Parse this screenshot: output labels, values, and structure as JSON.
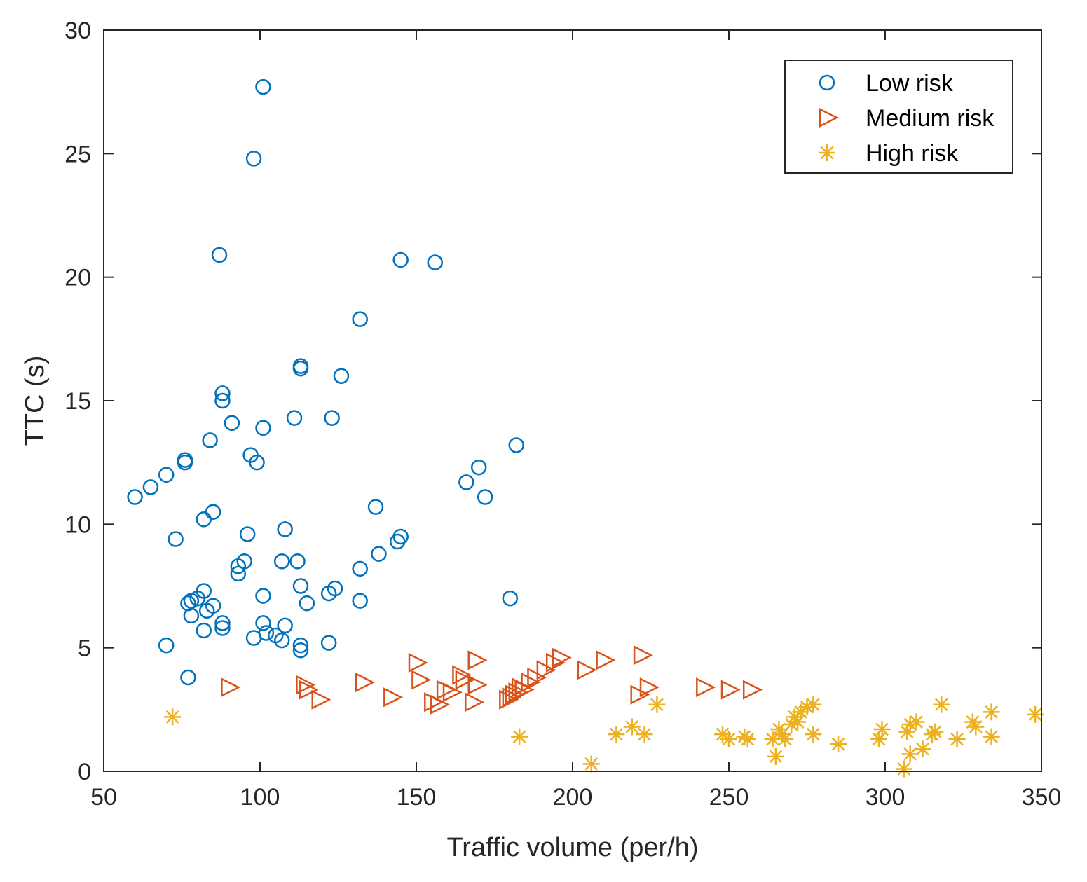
{
  "chart_data": {
    "type": "scatter",
    "title": "",
    "xlabel": "Traffic volume (per/h)",
    "ylabel": "TTC (s)",
    "xlim": [
      50,
      350
    ],
    "ylim": [
      0,
      30
    ],
    "xticks": [
      50,
      100,
      150,
      200,
      250,
      300,
      350
    ],
    "yticks": [
      0,
      5,
      10,
      15,
      20,
      25,
      30
    ],
    "xtick_labels": [
      "50",
      "100",
      "150",
      "200",
      "250",
      "300",
      "350"
    ],
    "ytick_labels": [
      "0",
      "5",
      "10",
      "15",
      "20",
      "25",
      "30"
    ],
    "grid": false,
    "legend_position": "top-right",
    "series": [
      {
        "name": "Low risk",
        "marker": "circle",
        "color": "#0072BD",
        "points": [
          [
            101,
            27.7
          ],
          [
            98,
            24.8
          ],
          [
            87,
            20.9
          ],
          [
            145,
            20.7
          ],
          [
            156,
            20.6
          ],
          [
            132,
            18.3
          ],
          [
            113,
            16.4
          ],
          [
            113,
            16.3
          ],
          [
            126,
            16.0
          ],
          [
            88,
            15.3
          ],
          [
            88,
            15.0
          ],
          [
            91,
            14.1
          ],
          [
            101,
            13.9
          ],
          [
            111,
            14.3
          ],
          [
            123,
            14.3
          ],
          [
            84,
            13.4
          ],
          [
            182,
            13.2
          ],
          [
            97,
            12.8
          ],
          [
            99,
            12.5
          ],
          [
            76,
            12.6
          ],
          [
            76,
            12.5
          ],
          [
            70,
            12.0
          ],
          [
            65,
            11.5
          ],
          [
            60,
            11.1
          ],
          [
            170,
            12.3
          ],
          [
            166,
            11.7
          ],
          [
            172,
            11.1
          ],
          [
            137,
            10.7
          ],
          [
            85,
            10.5
          ],
          [
            82,
            10.2
          ],
          [
            108,
            9.8
          ],
          [
            96,
            9.6
          ],
          [
            73,
            9.4
          ],
          [
            145,
            9.5
          ],
          [
            144,
            9.3
          ],
          [
            138,
            8.8
          ],
          [
            95,
            8.5
          ],
          [
            93,
            8.3
          ],
          [
            107,
            8.5
          ],
          [
            112,
            8.5
          ],
          [
            132,
            8.2
          ],
          [
            93,
            8.0
          ],
          [
            113,
            7.5
          ],
          [
            124,
            7.4
          ],
          [
            122,
            7.2
          ],
          [
            101,
            7.1
          ],
          [
            82,
            7.3
          ],
          [
            80,
            7.0
          ],
          [
            78,
            6.9
          ],
          [
            77,
            6.8
          ],
          [
            85,
            6.7
          ],
          [
            115,
            6.8
          ],
          [
            132,
            6.9
          ],
          [
            180,
            7.0
          ],
          [
            83,
            6.5
          ],
          [
            78,
            6.3
          ],
          [
            88,
            6.0
          ],
          [
            88,
            5.8
          ],
          [
            82,
            5.7
          ],
          [
            101,
            6.0
          ],
          [
            108,
            5.9
          ],
          [
            102,
            5.6
          ],
          [
            105,
            5.5
          ],
          [
            107,
            5.3
          ],
          [
            98,
            5.4
          ],
          [
            70,
            5.1
          ],
          [
            113,
            5.1
          ],
          [
            113,
            4.9
          ],
          [
            122,
            5.2
          ],
          [
            77,
            3.8
          ]
        ]
      },
      {
        "name": "Medium risk",
        "marker": "triangle-right",
        "color": "#D95319",
        "points": [
          [
            90,
            3.4
          ],
          [
            114,
            3.5
          ],
          [
            115,
            3.3
          ],
          [
            119,
            2.9
          ],
          [
            133,
            3.6
          ],
          [
            142,
            3.0
          ],
          [
            150,
            4.4
          ],
          [
            151,
            3.7
          ],
          [
            155,
            2.8
          ],
          [
            157,
            2.7
          ],
          [
            159,
            3.3
          ],
          [
            161,
            3.2
          ],
          [
            164,
            3.9
          ],
          [
            165,
            3.7
          ],
          [
            169,
            4.5
          ],
          [
            169,
            3.5
          ],
          [
            168,
            2.8
          ],
          [
            179,
            2.9
          ],
          [
            180,
            3.0
          ],
          [
            181,
            3.1
          ],
          [
            182,
            3.2
          ],
          [
            183,
            3.4
          ],
          [
            184,
            3.3
          ],
          [
            186,
            3.6
          ],
          [
            188,
            3.8
          ],
          [
            191,
            4.1
          ],
          [
            194,
            4.4
          ],
          [
            196,
            4.6
          ],
          [
            204,
            4.1
          ],
          [
            210,
            4.5
          ],
          [
            222,
            4.7
          ],
          [
            221,
            3.1
          ],
          [
            224,
            3.4
          ],
          [
            242,
            3.4
          ],
          [
            250,
            3.3
          ],
          [
            257,
            3.3
          ]
        ]
      },
      {
        "name": "High risk",
        "marker": "asterisk",
        "color": "#EDB120",
        "points": [
          [
            72,
            2.2
          ],
          [
            183,
            1.4
          ],
          [
            206,
            0.3
          ],
          [
            214,
            1.5
          ],
          [
            219,
            1.8
          ],
          [
            223,
            1.5
          ],
          [
            227,
            2.7
          ],
          [
            248,
            1.5
          ],
          [
            250,
            1.3
          ],
          [
            255,
            1.4
          ],
          [
            256,
            1.3
          ],
          [
            264,
            1.3
          ],
          [
            265,
            0.6
          ],
          [
            266,
            1.7
          ],
          [
            267,
            1.5
          ],
          [
            268,
            1.3
          ],
          [
            270,
            1.9
          ],
          [
            271,
            2.2
          ],
          [
            272,
            2.0
          ],
          [
            273,
            2.4
          ],
          [
            275,
            2.6
          ],
          [
            277,
            2.7
          ],
          [
            277,
            1.5
          ],
          [
            285,
            1.1
          ],
          [
            298,
            1.3
          ],
          [
            299,
            1.7
          ],
          [
            306,
            0.1
          ],
          [
            307,
            1.6
          ],
          [
            308,
            1.9
          ],
          [
            308,
            0.7
          ],
          [
            310,
            2.0
          ],
          [
            312,
            0.9
          ],
          [
            315,
            1.5
          ],
          [
            316,
            1.6
          ],
          [
            318,
            2.7
          ],
          [
            323,
            1.3
          ],
          [
            328,
            2.0
          ],
          [
            329,
            1.8
          ],
          [
            334,
            2.4
          ],
          [
            334,
            1.4
          ],
          [
            348,
            2.3
          ]
        ]
      }
    ]
  }
}
